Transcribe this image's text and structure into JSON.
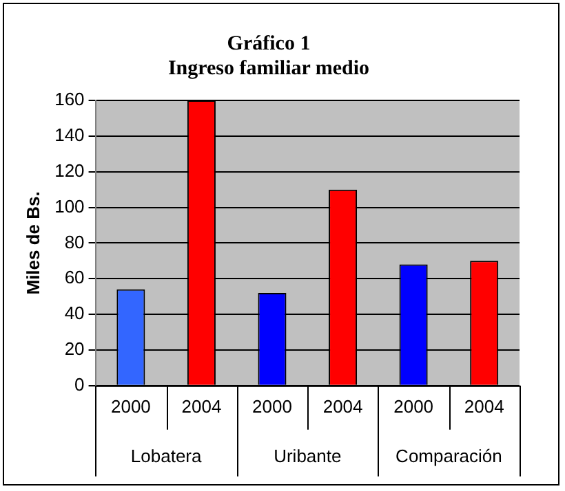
{
  "chart_data": {
    "type": "bar",
    "title": [
      "Gráfico 1",
      "Ingreso familiar medio"
    ],
    "ylabel": "Miles de Bs.",
    "categories": [
      "2000",
      "2004",
      "2000",
      "2004",
      "2000",
      "2004"
    ],
    "values": [
      54,
      160,
      52,
      110,
      68,
      70
    ],
    "colors": [
      "#3366ff",
      "#ff0000",
      "#0000ff",
      "#ff0000",
      "#0000ff",
      "#ff0000"
    ],
    "ylim": [
      0,
      160
    ],
    "yticks": [
      0,
      20,
      40,
      60,
      80,
      100,
      120,
      140,
      160
    ],
    "grid": "y",
    "legend": false,
    "annotations": [
      "Lobatera",
      "Uribante",
      "Comparación"
    ]
  }
}
